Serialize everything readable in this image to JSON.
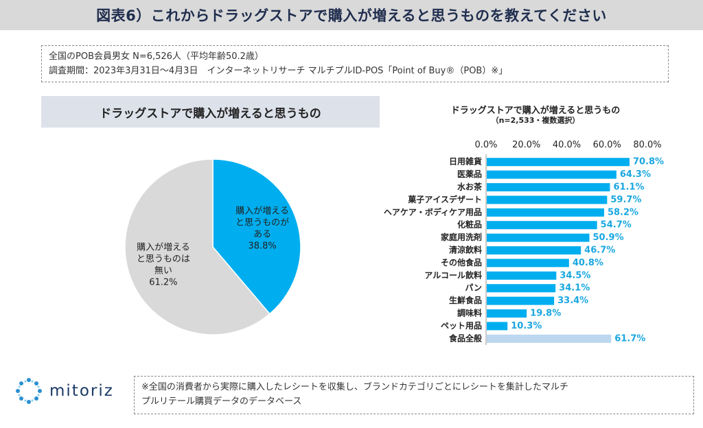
{
  "title": "図表6）これからドラッグストアで購入が増えると思うものを教えてください",
  "info": {
    "line1": "全国のPOB会員男女 N=6,526人（平均年齢50.2歳）",
    "line2": "調査期間：2023年3月31日～4月3日　インターネットリサーチ マルチプルID-POS「Point of Buy®（POB）※」"
  },
  "footnote": {
    "line1": "※全国の消費者から実際に購入したレシートを収集し、ブランドカテゴリごとにレシートを集計したマルチ",
    "line2": "プルリテール購買データのデータベース"
  },
  "logo": {
    "text": "mitoriz"
  },
  "colors": {
    "primary": "#00aeef",
    "grey": "#d9d9d9",
    "light": "#bcd7ef",
    "label": "#1aa7e0"
  },
  "chart_data": [
    {
      "type": "pie",
      "title": "ドラッグストアで購入が増えると思うもの",
      "slices": [
        {
          "label_lines": [
            "購入が増える",
            "と思うものが",
            "ある",
            "38.8%"
          ],
          "value": 38.8
        },
        {
          "label_lines": [
            "購入が増える",
            "と思うものは",
            "無い",
            "61.2%"
          ],
          "value": 61.2
        }
      ]
    },
    {
      "type": "bar",
      "orientation": "horizontal",
      "title": "ドラッグストアで購入が増えると思うもの",
      "subtitle": "（n=2,533・複数選択）",
      "xlim": [
        0,
        80
      ],
      "x_ticks": [
        "0.0%",
        "20.0%",
        "40.0%",
        "60.0%",
        "80.0%"
      ],
      "categories": [
        "日用雑貨",
        "医薬品",
        "水お茶",
        "菓子アイスデザート",
        "ヘアケア・ボディケア用品",
        "化粧品",
        "家庭用洗剤",
        "清涼飲料",
        "その他食品",
        "アルコール飲料",
        "パン",
        "生鮮食品",
        "調味料",
        "ペット用品",
        "食品全般"
      ],
      "values": [
        70.8,
        64.3,
        61.1,
        59.7,
        58.2,
        54.7,
        50.9,
        46.7,
        40.8,
        34.5,
        34.1,
        33.4,
        19.8,
        10.3,
        61.7
      ],
      "value_labels": [
        "70.8%",
        "64.3%",
        "61.1%",
        "59.7%",
        "58.2%",
        "54.7%",
        "50.9%",
        "46.7%",
        "40.8%",
        "34.5%",
        "34.1%",
        "33.4%",
        "19.8%",
        "10.3%",
        "61.7%"
      ],
      "highlight": [
        "primary",
        "primary",
        "primary",
        "primary",
        "primary",
        "primary",
        "primary",
        "primary",
        "primary",
        "primary",
        "primary",
        "primary",
        "primary",
        "primary",
        "light"
      ]
    }
  ]
}
